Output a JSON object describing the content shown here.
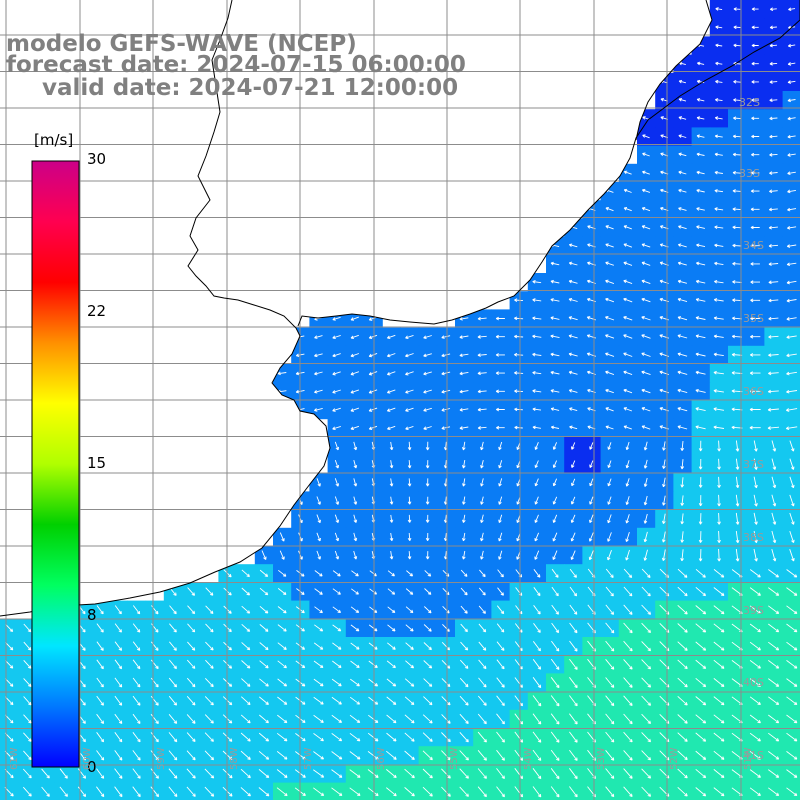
{
  "header": {
    "line1": "modelo GEFS-WAVE (NCEP)",
    "line2": "forecast date: 2024-07-15 06:00:00",
    "line3": "valid date: 2024-07-21 12:00:00"
  },
  "colorbar": {
    "unit": "[m/s]",
    "ticks": [
      "30",
      "22",
      "15",
      "8",
      "0"
    ],
    "range": [
      0,
      30
    ],
    "colors": [
      "#0000ff",
      "#0078ff",
      "#00e6ff",
      "#00ff60",
      "#00d000",
      "#b0ff00",
      "#ffff00",
      "#ff9000",
      "#ff0000",
      "#ff0050",
      "#cc0088"
    ]
  },
  "axes": {
    "lat_labels": [
      "32S",
      "33S",
      "34S",
      "35S",
      "36S",
      "37S",
      "38S",
      "39S",
      "40S",
      "41S"
    ],
    "lon_labels": [
      "61W",
      "60W",
      "59W",
      "58W",
      "57W",
      "56W",
      "55W",
      "54W",
      "53W",
      "52W",
      "51W"
    ]
  },
  "map": {
    "colors": {
      "land": "#ffffff",
      "grid": "#8c8c8c",
      "coastline": "#000000",
      "arrows": "#ffffff",
      "calm": "#0a2ef0",
      "moderate": "#0a7cf5",
      "fresh": "#14c8f0",
      "strong": "#20e8b0"
    }
  }
}
